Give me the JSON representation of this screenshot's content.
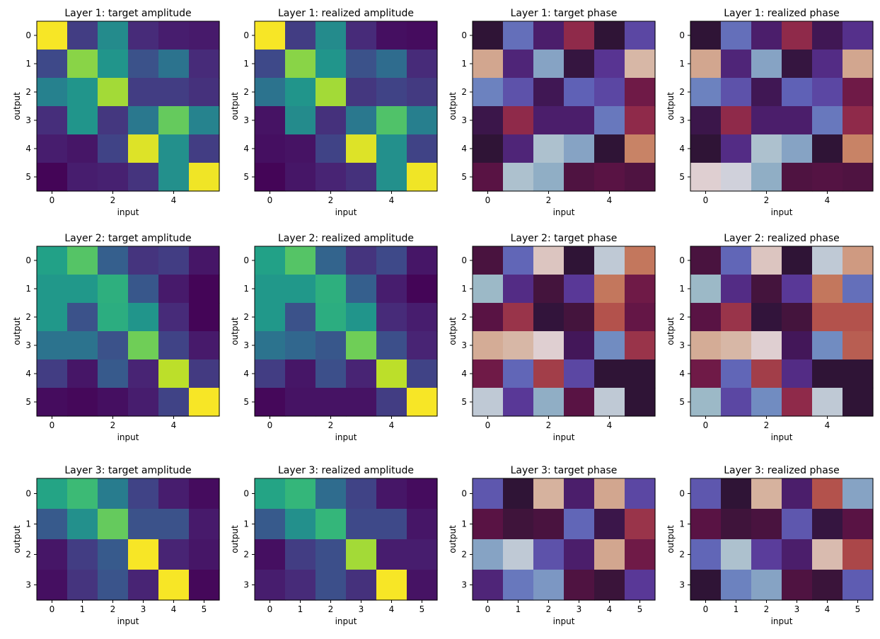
{
  "figure": {
    "colors": {
      "amplitude_colormap": "viridis",
      "phase_colormap": "twilight",
      "axes_frame": "#000000",
      "background": "#ffffff"
    }
  },
  "chart_data": [
    {
      "type": "heatmap",
      "colormap": "viridis",
      "layer": 1,
      "kind": "amplitude",
      "title": "Layer 1: target amplitude",
      "xlabel": "input",
      "ylabel": "output",
      "rows": 6,
      "cols": 6,
      "xticks": [
        "0",
        "2",
        "4"
      ],
      "yticks": [
        "0",
        "1",
        "2",
        "3",
        "4",
        "5"
      ],
      "values": [
        [
          0.99,
          0.18,
          0.48,
          0.12,
          0.08,
          0.07
        ],
        [
          0.22,
          0.82,
          0.52,
          0.25,
          0.38,
          0.12
        ],
        [
          0.44,
          0.52,
          0.86,
          0.18,
          0.18,
          0.14
        ],
        [
          0.13,
          0.52,
          0.16,
          0.4,
          0.76,
          0.45
        ],
        [
          0.08,
          0.06,
          0.2,
          0.95,
          0.5,
          0.18
        ],
        [
          0.01,
          0.08,
          0.09,
          0.15,
          0.5,
          0.98
        ]
      ]
    },
    {
      "type": "heatmap",
      "colormap": "viridis",
      "layer": 1,
      "kind": "amplitude",
      "title": "Layer 1: realized amplitude",
      "xlabel": "input",
      "ylabel": "output",
      "rows": 6,
      "cols": 6,
      "xticks": [
        "0",
        "2",
        "4"
      ],
      "yticks": [
        "0",
        "1",
        "2",
        "3",
        "4",
        "5"
      ],
      "values": [
        [
          0.99,
          0.18,
          0.48,
          0.12,
          0.04,
          0.03
        ],
        [
          0.22,
          0.82,
          0.52,
          0.25,
          0.35,
          0.12
        ],
        [
          0.38,
          0.52,
          0.86,
          0.16,
          0.2,
          0.17
        ],
        [
          0.05,
          0.48,
          0.14,
          0.4,
          0.72,
          0.43
        ],
        [
          0.04,
          0.05,
          0.2,
          0.95,
          0.5,
          0.2
        ],
        [
          0.01,
          0.06,
          0.1,
          0.14,
          0.5,
          0.98
        ]
      ]
    },
    {
      "type": "heatmap",
      "colormap": "twilight",
      "layer": 1,
      "kind": "phase",
      "title": "Layer 1: target phase",
      "xlabel": "input",
      "ylabel": "output",
      "rows": 6,
      "cols": 6,
      "xticks": [
        "0",
        "2",
        "4"
      ],
      "yticks": [
        "0",
        "1",
        "2",
        "3",
        "4",
        "5"
      ],
      "values": [
        [
          0.5,
          0.22,
          0.4,
          0.68,
          0.5,
          0.3
        ],
        [
          0.9,
          0.38,
          0.12,
          0.48,
          0.34,
          0.93
        ],
        [
          0.18,
          0.28,
          0.44,
          0.25,
          0.3,
          0.62
        ],
        [
          0.46,
          0.68,
          0.4,
          0.4,
          0.2,
          0.68
        ],
        [
          0.5,
          0.38,
          0.06,
          0.12,
          0.5,
          0.84
        ],
        [
          0.58,
          0.06,
          0.1,
          0.56,
          0.58,
          0.56
        ]
      ]
    },
    {
      "type": "heatmap",
      "colormap": "twilight",
      "layer": 1,
      "kind": "phase",
      "title": "Layer 1: realized phase",
      "xlabel": "input",
      "ylabel": "output",
      "rows": 6,
      "cols": 6,
      "xticks": [
        "0",
        "2",
        "4"
      ],
      "yticks": [
        "0",
        "1",
        "2",
        "3",
        "4",
        "5"
      ],
      "values": [
        [
          0.5,
          0.22,
          0.4,
          0.68,
          0.44,
          0.35
        ],
        [
          0.9,
          0.38,
          0.12,
          0.48,
          0.36,
          0.9
        ],
        [
          0.18,
          0.28,
          0.44,
          0.25,
          0.3,
          0.62
        ],
        [
          0.46,
          0.68,
          0.4,
          0.4,
          0.2,
          0.68
        ],
        [
          0.5,
          0.36,
          0.06,
          0.12,
          0.5,
          0.84
        ],
        [
          0.98,
          0.02,
          0.1,
          0.56,
          0.57,
          0.56
        ]
      ]
    },
    {
      "type": "heatmap",
      "colormap": "viridis",
      "layer": 2,
      "kind": "amplitude",
      "title": "Layer 2: target amplitude",
      "xlabel": "input",
      "ylabel": "output",
      "rows": 6,
      "cols": 6,
      "xticks": [
        "0",
        "2",
        "4"
      ],
      "yticks": [
        "0",
        "1",
        "2",
        "3",
        "4",
        "5"
      ],
      "values": [
        [
          0.57,
          0.73,
          0.3,
          0.15,
          0.18,
          0.06
        ],
        [
          0.53,
          0.53,
          0.63,
          0.27,
          0.07,
          0.01
        ],
        [
          0.53,
          0.25,
          0.62,
          0.52,
          0.12,
          0.01
        ],
        [
          0.38,
          0.38,
          0.25,
          0.78,
          0.2,
          0.07
        ],
        [
          0.18,
          0.06,
          0.28,
          0.1,
          0.9,
          0.17
        ],
        [
          0.03,
          0.02,
          0.04,
          0.08,
          0.2,
          0.99
        ]
      ]
    },
    {
      "type": "heatmap",
      "colormap": "viridis",
      "layer": 2,
      "kind": "amplitude",
      "title": "Layer 2: realized amplitude",
      "xlabel": "input",
      "ylabel": "output",
      "rows": 6,
      "cols": 6,
      "xticks": [
        "0",
        "2",
        "4"
      ],
      "yticks": [
        "0",
        "1",
        "2",
        "3",
        "4",
        "5"
      ],
      "values": [
        [
          0.57,
          0.73,
          0.32,
          0.15,
          0.22,
          0.06
        ],
        [
          0.53,
          0.53,
          0.63,
          0.3,
          0.08,
          0.01
        ],
        [
          0.53,
          0.25,
          0.62,
          0.52,
          0.12,
          0.08
        ],
        [
          0.38,
          0.33,
          0.27,
          0.78,
          0.24,
          0.1
        ],
        [
          0.18,
          0.06,
          0.24,
          0.1,
          0.9,
          0.2
        ],
        [
          0.02,
          0.05,
          0.05,
          0.05,
          0.18,
          0.99
        ]
      ]
    },
    {
      "type": "heatmap",
      "colormap": "twilight",
      "layer": 2,
      "kind": "phase",
      "title": "Layer 2: target phase",
      "xlabel": "input",
      "ylabel": "output",
      "rows": 6,
      "cols": 6,
      "xticks": [
        "0",
        "2",
        "4"
      ],
      "yticks": [
        "0",
        "1",
        "2",
        "3",
        "4",
        "5"
      ],
      "values": [
        [
          0.55,
          0.24,
          0.96,
          0.5,
          0.04,
          0.82
        ],
        [
          0.08,
          0.36,
          0.54,
          0.33,
          0.82,
          0.62
        ],
        [
          0.58,
          0.7,
          0.49,
          0.54,
          0.76,
          0.6
        ],
        [
          0.91,
          0.93,
          0.98,
          0.43,
          0.16,
          0.7
        ],
        [
          0.62,
          0.24,
          0.72,
          0.3,
          0.5,
          0.5
        ],
        [
          0.04,
          0.33,
          0.1,
          0.58,
          0.04,
          0.5
        ]
      ]
    },
    {
      "type": "heatmap",
      "colormap": "twilight",
      "layer": 2,
      "kind": "phase",
      "title": "Layer 2: realized phase",
      "xlabel": "input",
      "ylabel": "output",
      "rows": 6,
      "cols": 6,
      "xticks": [
        "0",
        "2",
        "4"
      ],
      "yticks": [
        "0",
        "1",
        "2",
        "3",
        "4",
        "5"
      ],
      "values": [
        [
          0.55,
          0.24,
          0.96,
          0.5,
          0.04,
          0.88
        ],
        [
          0.08,
          0.36,
          0.54,
          0.33,
          0.82,
          0.22
        ],
        [
          0.58,
          0.7,
          0.49,
          0.54,
          0.76,
          0.76
        ],
        [
          0.91,
          0.93,
          0.98,
          0.43,
          0.16,
          0.78
        ],
        [
          0.62,
          0.24,
          0.72,
          0.36,
          0.5,
          0.5
        ],
        [
          0.08,
          0.3,
          0.16,
          0.68,
          0.04,
          0.5
        ]
      ]
    },
    {
      "type": "heatmap",
      "colormap": "viridis",
      "layer": 3,
      "kind": "amplitude",
      "title": "Layer 3: target amplitude",
      "xlabel": "input",
      "ylabel": "output",
      "rows": 4,
      "cols": 6,
      "xticks": [
        "0",
        "1",
        "2",
        "3",
        "4",
        "5"
      ],
      "yticks": [
        "0",
        "1",
        "2",
        "3"
      ],
      "values": [
        [
          0.58,
          0.68,
          0.42,
          0.2,
          0.08,
          0.03
        ],
        [
          0.28,
          0.5,
          0.76,
          0.25,
          0.25,
          0.07
        ],
        [
          0.06,
          0.18,
          0.28,
          0.99,
          0.1,
          0.06
        ],
        [
          0.04,
          0.15,
          0.26,
          0.1,
          0.99,
          0.02
        ]
      ]
    },
    {
      "type": "heatmap",
      "colormap": "viridis",
      "layer": 3,
      "kind": "amplitude",
      "title": "Layer 3: realized amplitude",
      "xlabel": "input",
      "ylabel": "output",
      "rows": 4,
      "cols": 6,
      "xticks": [
        "0",
        "1",
        "2",
        "3",
        "4",
        "5"
      ],
      "yticks": [
        "0",
        "1",
        "2",
        "3"
      ],
      "values": [
        [
          0.58,
          0.66,
          0.35,
          0.2,
          0.06,
          0.03
        ],
        [
          0.28,
          0.5,
          0.66,
          0.22,
          0.22,
          0.06
        ],
        [
          0.04,
          0.18,
          0.24,
          0.86,
          0.08,
          0.08
        ],
        [
          0.08,
          0.12,
          0.24,
          0.14,
          0.99,
          0.05
        ]
      ]
    },
    {
      "type": "heatmap",
      "colormap": "twilight",
      "layer": 3,
      "kind": "phase",
      "title": "Layer 3: target phase",
      "xlabel": "input",
      "ylabel": "output",
      "rows": 4,
      "cols": 6,
      "xticks": [
        "0",
        "1",
        "2",
        "3",
        "4",
        "5"
      ],
      "yticks": [
        "0",
        "1",
        "2",
        "3"
      ],
      "values": [
        [
          0.27,
          0.5,
          0.92,
          0.4,
          0.9,
          0.3
        ],
        [
          0.58,
          0.53,
          0.55,
          0.24,
          0.46,
          0.7
        ],
        [
          0.12,
          0.04,
          0.28,
          0.4,
          0.9,
          0.62
        ],
        [
          0.38,
          0.2,
          0.14,
          0.56,
          0.52,
          0.33
        ]
      ]
    },
    {
      "type": "heatmap",
      "colormap": "twilight",
      "layer": 3,
      "kind": "phase",
      "title": "Layer 3: realized phase",
      "xlabel": "input",
      "ylabel": "output",
      "rows": 4,
      "cols": 6,
      "xticks": [
        "0",
        "1",
        "2",
        "3",
        "4",
        "5"
      ],
      "yticks": [
        "0",
        "1",
        "2",
        "3"
      ],
      "values": [
        [
          0.27,
          0.5,
          0.92,
          0.4,
          0.76,
          0.12
        ],
        [
          0.58,
          0.53,
          0.55,
          0.27,
          0.48,
          0.58
        ],
        [
          0.24,
          0.06,
          0.32,
          0.4,
          0.94,
          0.74
        ],
        [
          0.5,
          0.18,
          0.12,
          0.56,
          0.52,
          0.26
        ]
      ]
    }
  ]
}
